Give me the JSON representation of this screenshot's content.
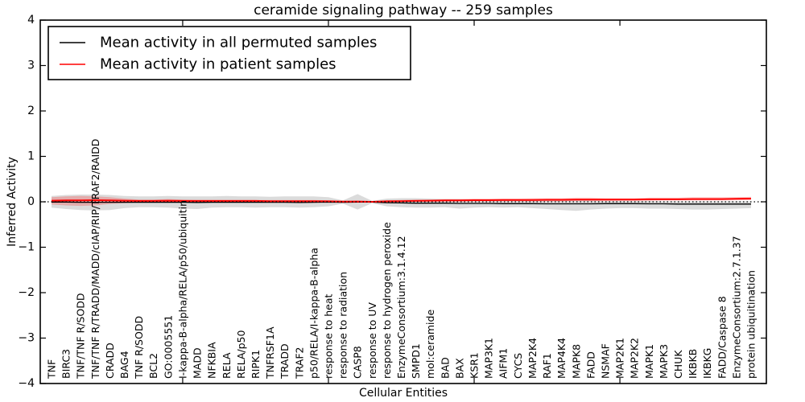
{
  "chart_data": {
    "type": "line",
    "title": "ceramide signaling pathway -- 259 samples",
    "xlabel": "Cellular Entities",
    "ylabel": "Inferred Activity",
    "ylim": [
      -4,
      4
    ],
    "yticks": [
      -4,
      -3,
      -2,
      -1,
      0,
      1,
      2,
      3,
      4
    ],
    "xticks_unlabeled": [
      10,
      20,
      30,
      40
    ],
    "grid": false,
    "legend_position": "upper left",
    "zero_reference_line": {
      "value": 0,
      "style": "dotted",
      "color": "#000000"
    },
    "categories": [
      "TNF",
      "BIRC3",
      "TNF/TNF R/SODD",
      "TNF/TNF R/TRADD/MADD/cIAP/RIP/TRAF2/RAIDD",
      "CRADD",
      "BAG4",
      "TNF R/SODD",
      "BCL2",
      "GO:0005551",
      "I-kappa-B-alpha/RELA/p50/ubiquitin",
      "MADD",
      "NFKBIA",
      "RELA",
      "RELA/p50",
      "RIPK1",
      "TNFRSF1A",
      "TRADD",
      "TRAF2",
      "p50/RELA/I-kappa-B-alpha",
      "response to heat",
      "response to radiation",
      "CASP8",
      "response to UV",
      "response to hydrogen peroxide",
      "EnzymeConsortium:3.1.4.12",
      "SMPD1",
      "mol:ceramide",
      "BAD",
      "BAX",
      "KSR1",
      "MAP3K1",
      "AIFM1",
      "CYCS",
      "MAP2K4",
      "RAF1",
      "MAP4K4",
      "MAPK8",
      "FADD",
      "NSMAF",
      "MAP2K1",
      "MAP2K2",
      "MAPK1",
      "MAPK3",
      "CHUK",
      "IKBKB",
      "IKBKG",
      "FADD/Caspase 8",
      "EnzymeConsortium:2.7.1.37",
      "protein ubiquitination"
    ],
    "series": [
      {
        "name": "Mean activity in all permuted samples",
        "color": "#000000",
        "line_width": 1.3,
        "band_color": "rgba(0,0,0,0.14)",
        "values": [
          -0.005,
          -0.005,
          -0.01,
          -0.01,
          -0.01,
          -0.01,
          -0.01,
          -0.01,
          -0.01,
          -0.01,
          -0.015,
          -0.01,
          -0.01,
          -0.01,
          -0.01,
          -0.01,
          -0.01,
          -0.015,
          -0.01,
          -0.005,
          -0.01,
          -0.005,
          -0.005,
          -0.02,
          -0.025,
          -0.03,
          -0.03,
          -0.03,
          -0.035,
          -0.035,
          -0.035,
          -0.04,
          -0.04,
          -0.04,
          -0.045,
          -0.045,
          -0.045,
          -0.045,
          -0.04,
          -0.04,
          -0.04,
          -0.045,
          -0.045,
          -0.05,
          -0.05,
          -0.05,
          -0.05,
          -0.05,
          -0.05
        ],
        "band_upper": [
          0.13,
          0.15,
          0.16,
          0.16,
          0.15,
          0.13,
          0.12,
          0.12,
          0.13,
          0.12,
          0.12,
          0.12,
          0.13,
          0.12,
          0.12,
          0.11,
          0.12,
          0.12,
          0.12,
          0.1,
          0.03,
          0.17,
          0.02,
          0.07,
          0.08,
          0.08,
          0.07,
          0.06,
          0.06,
          0.05,
          0.05,
          0.05,
          0.04,
          0.04,
          0.04,
          0.03,
          0.03,
          0.03,
          0.02,
          0.02,
          0.02,
          0.02,
          0.01,
          0.01,
          0.01,
          0.01,
          0.01,
          0.01,
          0.01
        ],
        "band_lower": [
          -0.13,
          -0.16,
          -0.18,
          -0.19,
          -0.18,
          -0.14,
          -0.12,
          -0.12,
          -0.13,
          -0.15,
          -0.16,
          -0.13,
          -0.12,
          -0.12,
          -0.13,
          -0.12,
          -0.12,
          -0.13,
          -0.12,
          -0.1,
          -0.04,
          -0.17,
          -0.03,
          -0.1,
          -0.12,
          -0.13,
          -0.13,
          -0.12,
          -0.15,
          -0.13,
          -0.12,
          -0.13,
          -0.12,
          -0.14,
          -0.16,
          -0.18,
          -0.2,
          -0.17,
          -0.15,
          -0.14,
          -0.14,
          -0.15,
          -0.15,
          -0.16,
          -0.17,
          -0.17,
          -0.16,
          -0.15,
          -0.14
        ]
      },
      {
        "name": "Mean activity in patient samples",
        "color": "#ff0000",
        "line_width": 2,
        "band_color": "rgba(255,0,0,0.22)",
        "values": [
          0.025,
          0.03,
          0.03,
          0.035,
          0.03,
          0.025,
          0.02,
          0.02,
          0.025,
          0.02,
          0.02,
          0.02,
          0.02,
          0.02,
          0.02,
          0.015,
          0.015,
          0.015,
          0.015,
          0.01,
          0.005,
          0.005,
          0.0,
          0.01,
          0.015,
          0.02,
          0.025,
          0.03,
          0.03,
          0.035,
          0.035,
          0.04,
          0.04,
          0.04,
          0.045,
          0.045,
          0.05,
          0.05,
          0.05,
          0.05,
          0.05,
          0.055,
          0.055,
          0.055,
          0.06,
          0.06,
          0.06,
          0.065,
          0.07
        ],
        "band_upper": [
          0.1,
          0.12,
          0.13,
          0.12,
          0.1,
          0.07,
          0.05,
          0.05,
          0.06,
          0.05,
          0.04,
          0.04,
          0.04,
          0.04,
          0.04,
          0.04,
          0.04,
          0.04,
          0.04,
          0.03,
          0.02,
          0.03,
          0.015,
          0.03,
          0.04,
          0.05,
          0.05,
          0.06,
          0.06,
          0.07,
          0.07,
          0.07,
          0.07,
          0.08,
          0.08,
          0.08,
          0.09,
          0.09,
          0.08,
          0.08,
          0.08,
          0.09,
          0.09,
          0.09,
          0.1,
          0.1,
          0.1,
          0.1,
          0.11
        ],
        "band_lower": [
          -0.06,
          -0.08,
          -0.09,
          -0.08,
          -0.05,
          -0.03,
          -0.01,
          -0.01,
          -0.02,
          -0.01,
          0.0,
          0.0,
          0.0,
          0.0,
          0.0,
          0.0,
          0.0,
          0.0,
          0.0,
          -0.005,
          -0.01,
          -0.02,
          -0.015,
          -0.005,
          0.0,
          0.0,
          0.005,
          0.005,
          0.01,
          0.01,
          0.01,
          0.015,
          0.015,
          0.01,
          0.015,
          0.015,
          0.02,
          0.02,
          0.02,
          0.025,
          0.025,
          0.025,
          0.03,
          0.03,
          0.03,
          0.03,
          0.03,
          0.035,
          0.035
        ]
      }
    ]
  }
}
